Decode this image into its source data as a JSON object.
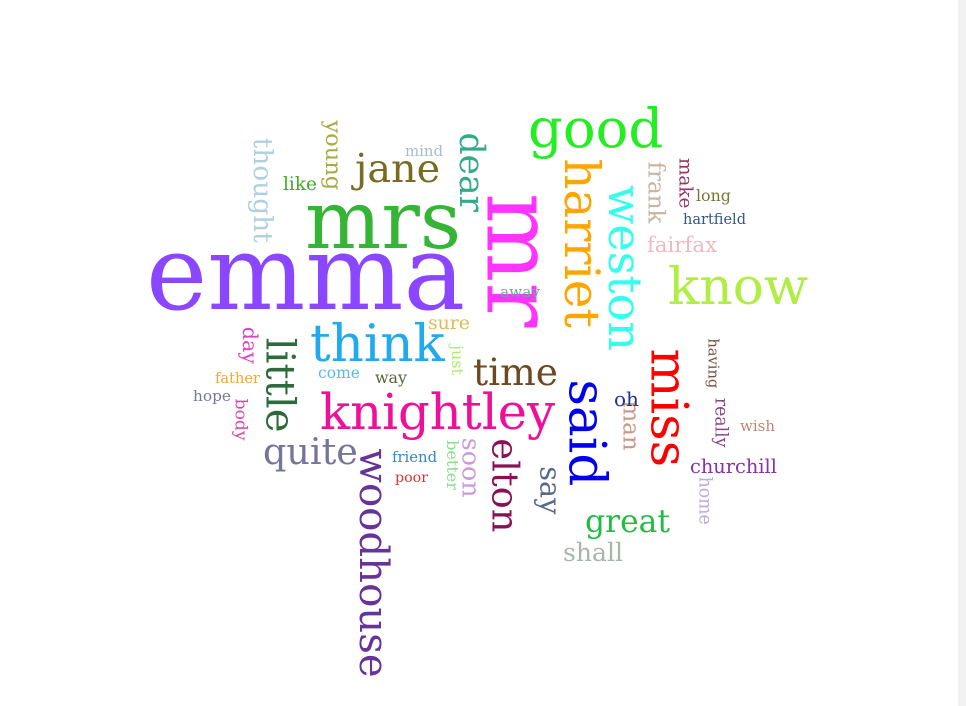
{
  "words": [
    {
      "text": "emma",
      "color": "#8b46ff",
      "rotate": false
    },
    {
      "text": "mr",
      "color": "#ff33ff",
      "rotate": true
    },
    {
      "text": "mrs",
      "color": "#35b435",
      "rotate": false
    },
    {
      "text": "miss",
      "color": "#ff0000",
      "rotate": true
    },
    {
      "text": "said",
      "color": "#0000ee",
      "rotate": true
    },
    {
      "text": "good",
      "color": "#22ee22",
      "rotate": false
    },
    {
      "text": "harriet",
      "color": "#ffa500",
      "rotate": true
    },
    {
      "text": "weston",
      "color": "#33ffee",
      "rotate": true
    },
    {
      "text": "know",
      "color": "#b0ee44",
      "rotate": false
    },
    {
      "text": "knightley",
      "color": "#ee1099",
      "rotate": false
    },
    {
      "text": "think",
      "color": "#22aaee",
      "rotate": false
    },
    {
      "text": "elton",
      "color": "#881155",
      "rotate": true
    },
    {
      "text": "woodhouse",
      "color": "#663399",
      "rotate": true
    },
    {
      "text": "little",
      "color": "#2e6b3c",
      "rotate": true
    },
    {
      "text": "jane",
      "color": "#7a6b22",
      "rotate": false
    },
    {
      "text": "time",
      "color": "#6b4a22",
      "rotate": false
    },
    {
      "text": "quite",
      "color": "#757599",
      "rotate": false
    },
    {
      "text": "say",
      "color": "#5a6a8a",
      "rotate": true
    },
    {
      "text": "great",
      "color": "#22bb44",
      "rotate": false
    },
    {
      "text": "dear",
      "color": "#33aa88",
      "rotate": true
    },
    {
      "text": "thought",
      "color": "#b0d0e0",
      "rotate": true
    },
    {
      "text": "soon",
      "color": "#cc99dd",
      "rotate": true
    },
    {
      "text": "man",
      "color": "#cc9988",
      "rotate": true
    },
    {
      "text": "shall",
      "color": "#aab5aa",
      "rotate": false
    },
    {
      "text": "churchill",
      "color": "#8833aa",
      "rotate": false
    },
    {
      "text": "fairfax",
      "color": "#f0b8c0",
      "rotate": false
    },
    {
      "text": "frank",
      "color": "#c8b4a0",
      "rotate": true
    },
    {
      "text": "young",
      "color": "#aaaa44",
      "rotate": true
    },
    {
      "text": "like",
      "color": "#44aa22",
      "rotate": false
    },
    {
      "text": "sure",
      "color": "#ddbb55",
      "rotate": false
    },
    {
      "text": "oh",
      "color": "#223399",
      "rotate": false
    },
    {
      "text": "away",
      "color": "#66aa99",
      "rotate": false
    },
    {
      "text": "hartfield",
      "color": "#335588",
      "rotate": false
    },
    {
      "text": "long",
      "color": "#777733",
      "rotate": false
    },
    {
      "text": "make",
      "color": "#993366",
      "rotate": true
    },
    {
      "text": "mind",
      "color": "#aabbcc",
      "rotate": false
    },
    {
      "text": "having",
      "color": "#775544",
      "rotate": true
    },
    {
      "text": "really",
      "color": "#884488",
      "rotate": true
    },
    {
      "text": "wish",
      "color": "#bb8877",
      "rotate": false
    },
    {
      "text": "home",
      "color": "#bbaadd",
      "rotate": true
    },
    {
      "text": "day",
      "color": "#dd44cc",
      "rotate": true
    },
    {
      "text": "father",
      "color": "#eeaa33",
      "rotate": false
    },
    {
      "text": "hope",
      "color": "#777799",
      "rotate": false
    },
    {
      "text": "body",
      "color": "#dd44aa",
      "rotate": true
    },
    {
      "text": "come",
      "color": "#55bbee",
      "rotate": false
    },
    {
      "text": "way",
      "color": "#556633",
      "rotate": false
    },
    {
      "text": "just",
      "color": "#aaee66",
      "rotate": true
    },
    {
      "text": "friend",
      "color": "#3388cc",
      "rotate": false
    },
    {
      "text": "poor",
      "color": "#dd3333",
      "rotate": false
    },
    {
      "text": "better",
      "color": "#88dd88",
      "rotate": true
    }
  ]
}
